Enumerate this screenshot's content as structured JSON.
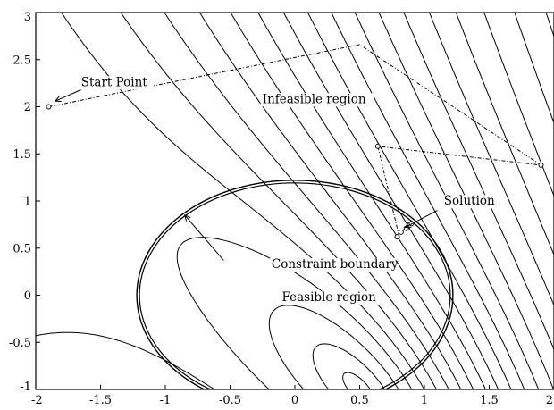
{
  "chart_data": {
    "type": "contour",
    "title": "",
    "xlabel": "",
    "ylabel": "",
    "xlim": [
      -2,
      2
    ],
    "ylim": [
      -1,
      3
    ],
    "grid": false,
    "x_ticks": [
      "-2",
      "-1.5",
      "-1",
      "-0.5",
      "0",
      "0.5",
      "1",
      "1.5",
      "2"
    ],
    "y_ticks": [
      "-1",
      "-0.5",
      "0",
      "0.5",
      "1",
      "1.5",
      "2",
      "2.5",
      "3"
    ],
    "x_tick_values": [
      -2,
      -1.5,
      -1,
      -0.5,
      0,
      0.5,
      1,
      1.5,
      2
    ],
    "y_tick_values": [
      -1,
      -0.5,
      0,
      0.5,
      1,
      1.5,
      2,
      2.5,
      3
    ],
    "objective_contour_levels": [
      0.05,
      0.3,
      0.8,
      1.6,
      2.7,
      4.2,
      6.2,
      8.8,
      12.2,
      16.5,
      22,
      29,
      38,
      50,
      66,
      88,
      118,
      160,
      220,
      310,
      440,
      640,
      940
    ],
    "constraint_boundary": {
      "shape": "ellipse",
      "center": [
        0,
        0
      ],
      "semi_axes": [
        1.22,
        1.22
      ]
    },
    "iterate_path": [
      [
        -1.9,
        2.0
      ],
      [
        0.5,
        2.66
      ],
      [
        1.9,
        1.38
      ],
      [
        0.64,
        1.58
      ],
      [
        0.72,
        1.12
      ],
      [
        0.8,
        0.65
      ],
      [
        0.82,
        0.68
      ],
      [
        0.86,
        0.72
      ],
      [
        0.9,
        0.75
      ]
    ],
    "markers": [
      [
        -1.9,
        2.0
      ],
      [
        0.64,
        1.58
      ],
      [
        1.9,
        1.38
      ],
      [
        0.79,
        0.62
      ],
      [
        0.82,
        0.67
      ],
      [
        0.86,
        0.71
      ],
      [
        0.9,
        0.76
      ]
    ],
    "annotations": [
      {
        "text": "Start Point",
        "x": -1.65,
        "y": 2.22
      },
      {
        "text": "Infeasible region",
        "x": -0.25,
        "y": 2.04
      },
      {
        "text": "Solution",
        "x": 1.15,
        "y": 0.96
      },
      {
        "text": "Constraint boundary",
        "x": -0.18,
        "y": 0.29
      },
      {
        "text": "Feasible region",
        "x": -0.1,
        "y": -0.06
      }
    ],
    "annotation_arrows": [
      {
        "from": [
          -1.65,
          2.18
        ],
        "to": [
          -1.85,
          2.06
        ]
      },
      {
        "from": [
          -0.55,
          0.37
        ],
        "to": [
          -0.85,
          0.85
        ]
      },
      {
        "from": [
          1.1,
          0.9
        ],
        "to": [
          0.85,
          0.72
        ]
      }
    ]
  }
}
